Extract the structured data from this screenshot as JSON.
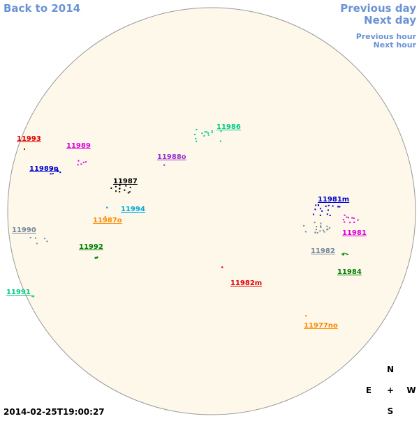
{
  "nav": {
    "back": "Back to 2014",
    "previous_day": "Previous day",
    "next_day": "Next day",
    "previous_hour": "Previous hour",
    "next_hour": "Next hour"
  },
  "timestamp": "2014-02-25T19:00:27",
  "compass": {
    "north": "N",
    "east": "E",
    "center": "+",
    "west": "W",
    "south": "S"
  },
  "regions": [
    {
      "label": "11993",
      "color": "#e00000"
    },
    {
      "label": "11989",
      "color": "#dd00dd"
    },
    {
      "label": "11988o",
      "color": "#9933cc"
    },
    {
      "label": "11986",
      "color": "#00cc88"
    },
    {
      "label": "11989n",
      "color": "#0000cc"
    },
    {
      "label": "11987",
      "color": "#000000"
    },
    {
      "label": "11994",
      "color": "#00aadd"
    },
    {
      "label": "11987o",
      "color": "#ff8800"
    },
    {
      "label": "11990",
      "color": "#778899"
    },
    {
      "label": "11992",
      "color": "#008000"
    },
    {
      "label": "11991",
      "color": "#00cc88"
    },
    {
      "label": "11981m",
      "color": "#0000cc"
    },
    {
      "label": "11981",
      "color": "#dd00dd"
    },
    {
      "label": "11982",
      "color": "#778899"
    },
    {
      "label": "11984",
      "color": "#008000"
    },
    {
      "label": "11982m",
      "color": "#e00000"
    },
    {
      "label": "11977no",
      "color": "#ff8800"
    }
  ]
}
